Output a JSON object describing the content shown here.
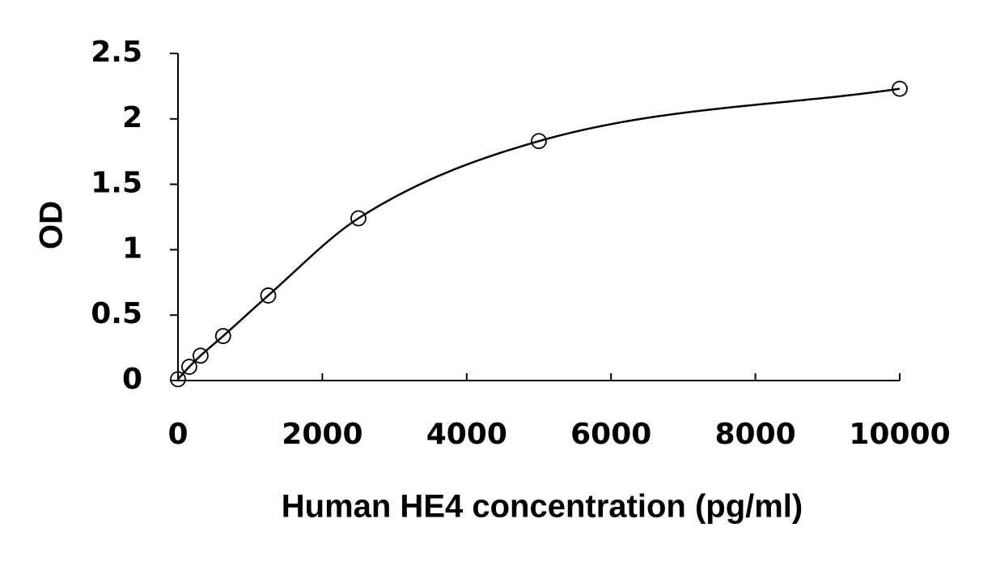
{
  "chart_data": {
    "type": "scatter",
    "x_label": "Human HE4 concentration (pg/ml)",
    "y_label": "OD",
    "series": [
      {
        "color": "#000000",
        "x": [
          0,
          156.25,
          312.5,
          625,
          1250,
          2500,
          5000,
          10000
        ],
        "values": [
          0.01,
          0.105,
          0.19,
          0.34,
          0.65,
          1.24,
          1.83,
          2.23
        ]
      }
    ],
    "fit_line": true,
    "xlim": [
      0,
      10000
    ],
    "xticks": [
      0,
      2000,
      4000,
      6000,
      8000,
      10000
    ],
    "ylim": [
      0,
      2.5
    ],
    "yticks": [
      0,
      0.5,
      1,
      1.5,
      2,
      2.5
    ],
    "grid": false
  }
}
